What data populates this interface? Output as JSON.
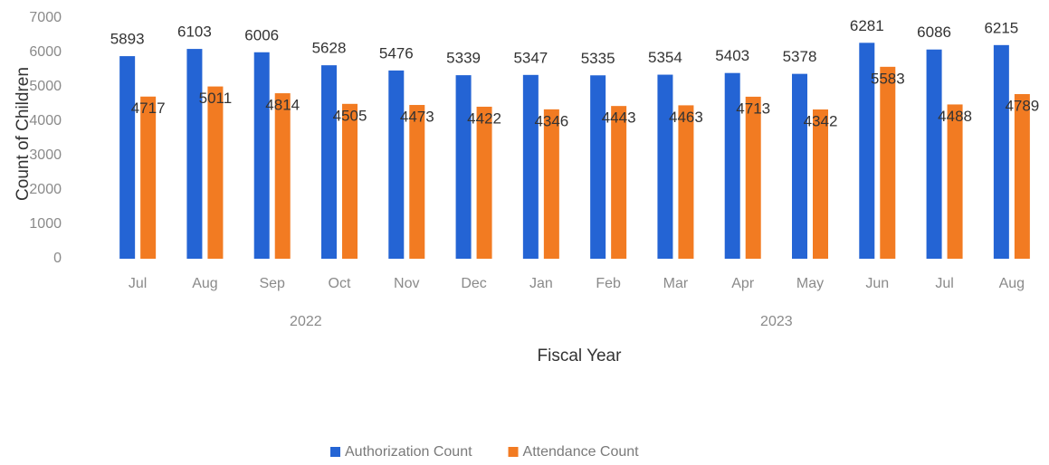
{
  "chart_data": {
    "type": "bar",
    "categories": [
      "Jul",
      "Aug",
      "Sep",
      "Oct",
      "Nov",
      "Dec",
      "Jan",
      "Feb",
      "Mar",
      "Apr",
      "May",
      "Jun",
      "Jul",
      "Aug"
    ],
    "groups": [
      {
        "name": "2022",
        "span": [
          0,
          5
        ]
      },
      {
        "name": "2023",
        "span": [
          6,
          13
        ]
      }
    ],
    "series": [
      {
        "name": "Authorization Count",
        "color": "#2464d4",
        "values": [
          5893,
          6103,
          6006,
          5628,
          5476,
          5339,
          5347,
          5335,
          5354,
          5403,
          5378,
          6281,
          6086,
          6215
        ]
      },
      {
        "name": "Attendance Count",
        "color": "#f27b22",
        "values": [
          4717,
          5011,
          4814,
          4505,
          4473,
          4422,
          4346,
          4443,
          4463,
          4713,
          4342,
          5583,
          4488,
          4789
        ]
      }
    ],
    "xlabel": "Fiscal Year",
    "ylabel": "Count of Children",
    "ylim": [
      0,
      7000
    ],
    "yticks": [
      0,
      1000,
      2000,
      3000,
      4000,
      5000,
      6000,
      7000
    ],
    "grid": false,
    "legend": "bottom",
    "data_labels": true
  }
}
